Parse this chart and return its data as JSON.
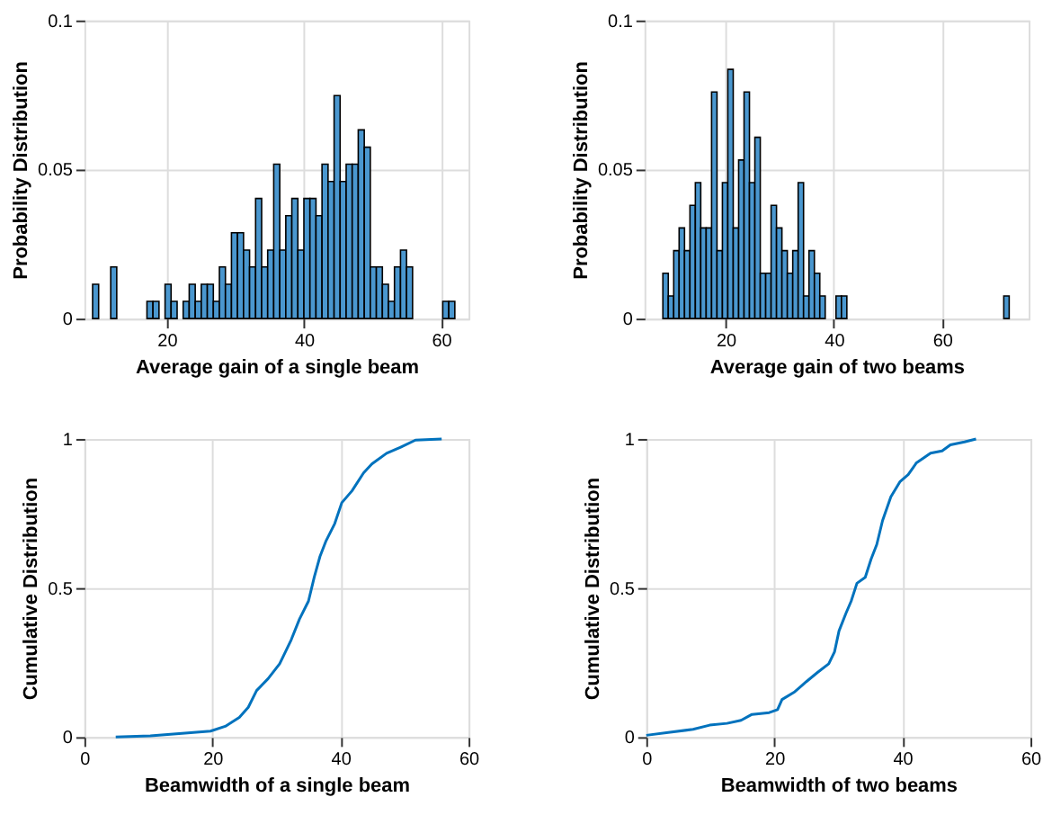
{
  "chart_data": [
    {
      "type": "histogram",
      "xlabel": "Average gain of a single beam",
      "ylabel": "Probability Distribution",
      "color": "#4a97cf",
      "grid": true,
      "xlim": [
        8,
        64
      ],
      "xticks": [
        20,
        40,
        60
      ],
      "ylim": [
        0,
        0.1
      ],
      "yticks": [
        0,
        0.05,
        0.1
      ],
      "bins": [
        9.2,
        10.08,
        10.96,
        11.84,
        12.72,
        13.6,
        14.48,
        15.36,
        16.24,
        17.12,
        18.0,
        18.88,
        19.76,
        20.64,
        21.52,
        22.4,
        23.28,
        24.16,
        25.04,
        25.92,
        26.8,
        27.68,
        28.56,
        29.44,
        30.32,
        31.2,
        32.08,
        32.96,
        33.84,
        34.72,
        35.6,
        36.48,
        37.36,
        38.24,
        39.12,
        40.0,
        40.88,
        41.76,
        42.64,
        43.52,
        44.4,
        45.28,
        46.16,
        47.04,
        47.92,
        48.8,
        49.68,
        50.56,
        51.44,
        52.32,
        53.2,
        54.08,
        54.96,
        55.84,
        56.72,
        57.6,
        58.48,
        59.36,
        60.24,
        61.12,
        62.0
      ],
      "values": [
        0.0115,
        0,
        0,
        0.0173,
        0,
        0,
        0,
        0,
        0,
        0.0058,
        0.0058,
        0,
        0.0115,
        0.0058,
        0,
        0.0058,
        0.0115,
        0.0058,
        0.0115,
        0.0115,
        0.0058,
        0.0173,
        0.0115,
        0.0288,
        0.0288,
        0.023,
        0.0173,
        0.0403,
        0.0173,
        0.023,
        0.0518,
        0.023,
        0.0345,
        0.0403,
        0.023,
        0.0403,
        0.0403,
        0.0345,
        0.0518,
        0.046,
        0.0748,
        0.046,
        0.0518,
        0.0518,
        0.0633,
        0.0575,
        0.0173,
        0.0173,
        0.0115,
        0.0058,
        0.0173,
        0.023,
        0.0173,
        0,
        0,
        0,
        0,
        0,
        0.0058,
        0.0058
      ]
    },
    {
      "type": "histogram",
      "xlabel": "Average gain of two beams",
      "ylabel": "Probability Distribution",
      "color": "#4a97cf",
      "grid": true,
      "xlim": [
        5,
        76
      ],
      "xticks": [
        20,
        40,
        60
      ],
      "ylim": [
        0,
        0.1
      ],
      "yticks": [
        0,
        0.05,
        0.1
      ],
      "bins": [
        8.4,
        9.4,
        10.4,
        11.4,
        12.4,
        13.4,
        14.4,
        15.4,
        16.4,
        17.4,
        18.4,
        19.4,
        20.4,
        21.4,
        22.4,
        23.4,
        24.4,
        25.4,
        26.4,
        27.4,
        28.4,
        29.4,
        30.4,
        31.4,
        32.4,
        33.4,
        34.4,
        35.4,
        36.4,
        37.4,
        38.4,
        39.4,
        40.4,
        41.4,
        42.4,
        43.4,
        44.4,
        45.4,
        46.4,
        47.4,
        48.4,
        49.4,
        50.4,
        51.4,
        52.4,
        53.4,
        54.4,
        55.4,
        56.4,
        57.4,
        58.4,
        59.4,
        60.4,
        61.4,
        62.4,
        63.4,
        64.4,
        65.4,
        66.4,
        67.4,
        68.4,
        69.4,
        70.4,
        71.4,
        72.4
      ],
      "values": [
        0.0152,
        0.0076,
        0.0228,
        0.0304,
        0.0228,
        0.038,
        0.0456,
        0.0304,
        0.0304,
        0.076,
        0.0228,
        0.0456,
        0.0836,
        0.0304,
        0.0532,
        0.076,
        0.0456,
        0.0608,
        0.0152,
        0.0152,
        0.038,
        0.0304,
        0.0228,
        0.0152,
        0.0228,
        0.0456,
        0.0076,
        0.0228,
        0.0152,
        0.0076,
        0,
        0,
        0.0076,
        0.0076,
        0,
        0,
        0,
        0,
        0,
        0,
        0,
        0,
        0,
        0,
        0,
        0,
        0,
        0,
        0,
        0,
        0,
        0,
        0,
        0,
        0,
        0,
        0,
        0,
        0,
        0,
        0,
        0,
        0,
        0.0076
      ]
    },
    {
      "type": "line",
      "xlabel": "Beamwidth of a single beam",
      "ylabel": "Cumulative Distribution",
      "color": "#0072bd",
      "grid": true,
      "xlim": [
        0,
        60
      ],
      "xticks": [
        0,
        20,
        40,
        60
      ],
      "ylim": [
        0,
        1
      ],
      "yticks": [
        0,
        0.5,
        1
      ],
      "x": [
        4.9,
        10.3,
        14.8,
        19.7,
        22,
        24.2,
        25.6,
        26.9,
        28.7,
        30.5,
        32.3,
        33.6,
        35.0,
        35.9,
        36.8,
        37.7,
        39.1,
        40.2,
        41.8,
        43.6,
        44.9,
        47.2,
        49.4,
        51.7,
        55.8
      ],
      "values": [
        0,
        0.004,
        0.012,
        0.02,
        0.036,
        0.066,
        0.1,
        0.156,
        0.196,
        0.246,
        0.326,
        0.396,
        0.456,
        0.536,
        0.606,
        0.656,
        0.716,
        0.786,
        0.826,
        0.886,
        0.916,
        0.952,
        0.972,
        0.996,
        1.0
      ]
    },
    {
      "type": "line",
      "xlabel": "Beamwidth of two beams",
      "ylabel": "Cumulative Distribution",
      "color": "#0072bd",
      "grid": true,
      "xlim": [
        0,
        60
      ],
      "xticks": [
        0,
        20,
        40,
        60
      ],
      "ylim": [
        0,
        1
      ],
      "yticks": [
        0,
        0.5,
        1
      ],
      "x": [
        0,
        3.7,
        7.3,
        9.9,
        12.6,
        14.8,
        16.5,
        19.2,
        20.5,
        21.2,
        23.2,
        25.0,
        26.7,
        28.5,
        29.4,
        30.1,
        31.2,
        32.0,
        32.9,
        34.2,
        35.1,
        36.0,
        36.9,
        38.2,
        39.6,
        40.9,
        42.2,
        44.4,
        46.2,
        47.5,
        49.7,
        51.5
      ],
      "values": [
        0.006,
        0.016,
        0.026,
        0.04,
        0.046,
        0.056,
        0.076,
        0.082,
        0.092,
        0.126,
        0.152,
        0.186,
        0.216,
        0.246,
        0.286,
        0.356,
        0.416,
        0.456,
        0.516,
        0.536,
        0.596,
        0.646,
        0.726,
        0.806,
        0.856,
        0.88,
        0.92,
        0.952,
        0.96,
        0.98,
        0.99,
        1.0
      ]
    }
  ]
}
